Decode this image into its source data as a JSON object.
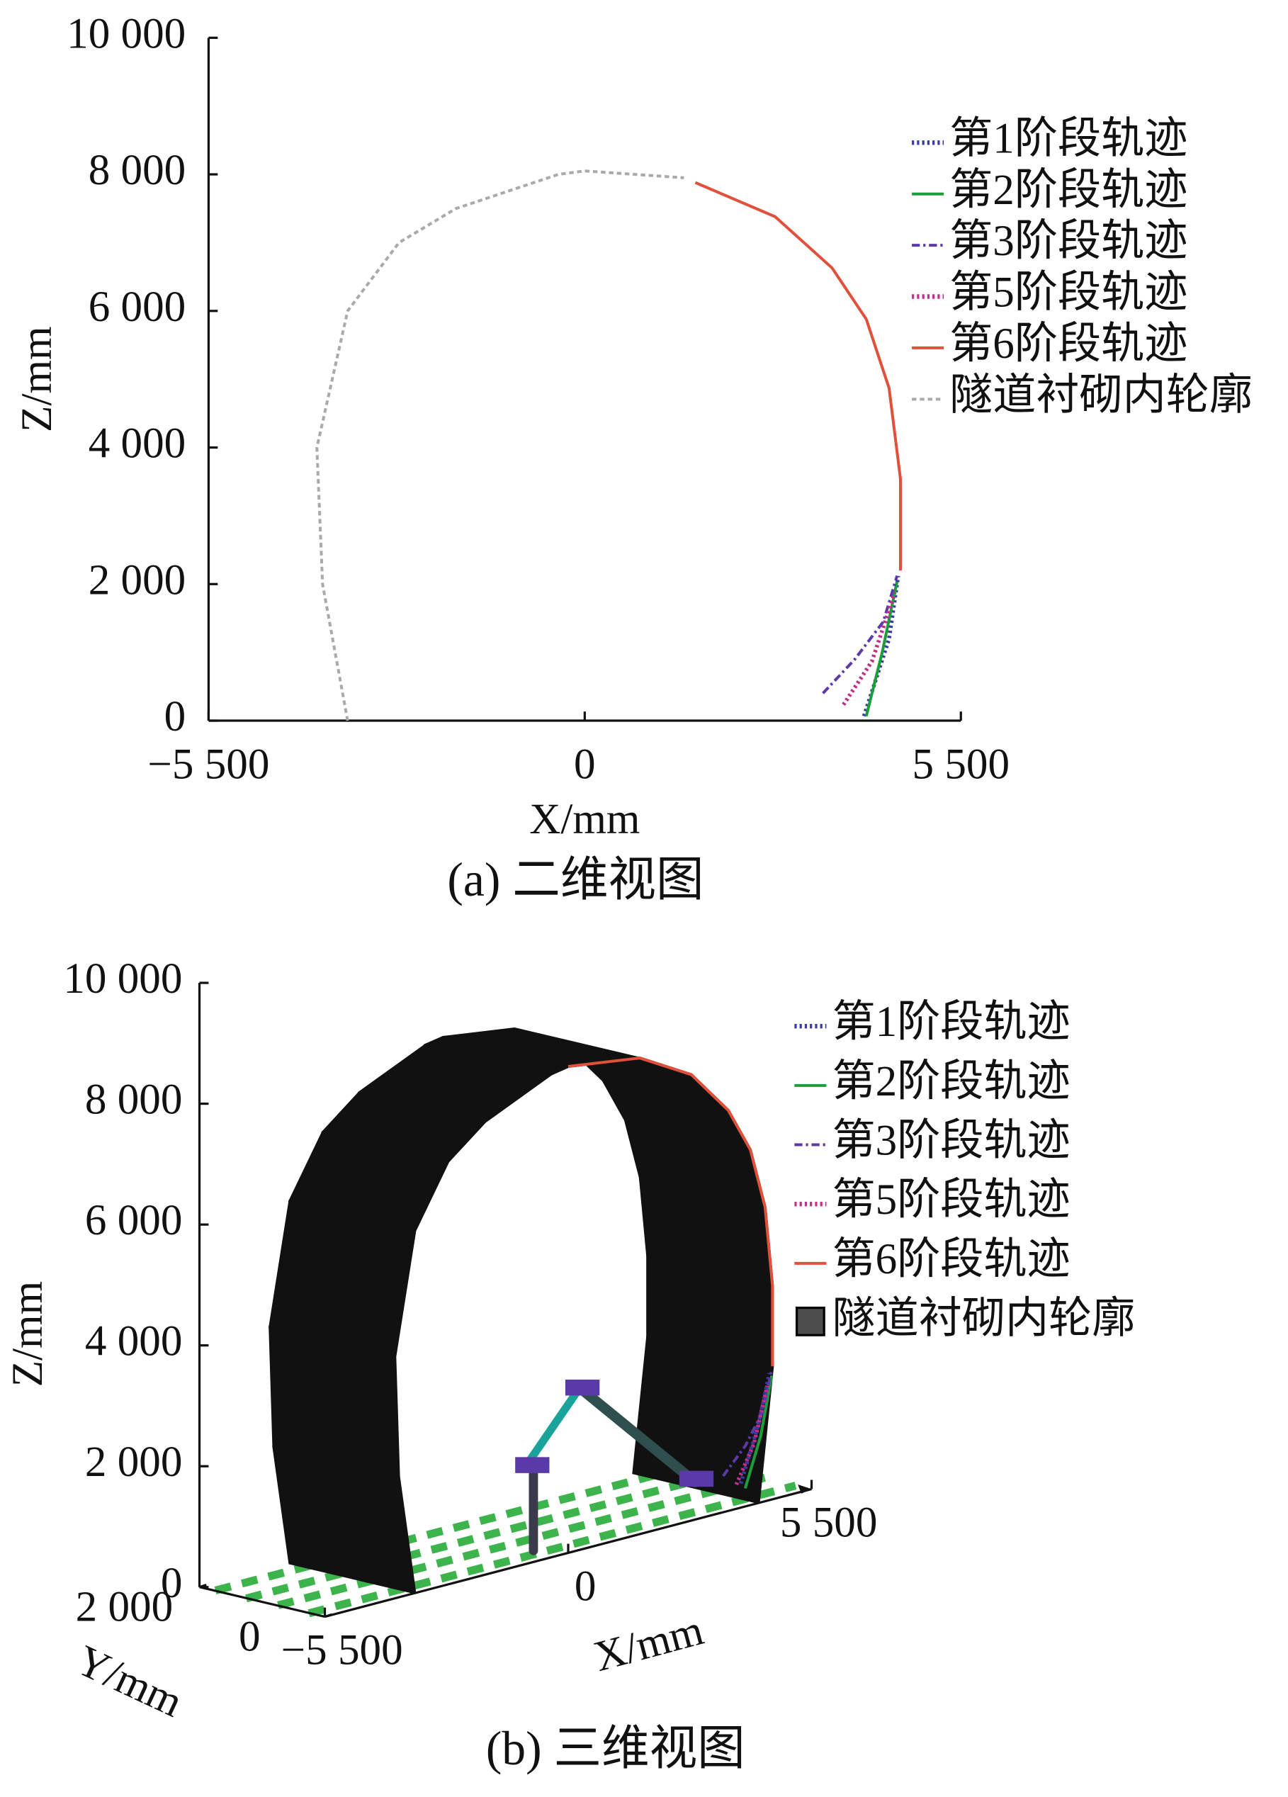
{
  "chart_data": [
    {
      "type": "line",
      "caption": "(a)  二维视图",
      "xlabel": "X/mm",
      "ylabel": "Z/mm",
      "xlim": [
        -5500,
        5500
      ],
      "xticks": [
        {
          "value": -5500,
          "label": "−5 500"
        },
        0,
        {
          "value": 5500,
          "label": "5 500"
        }
      ],
      "ylim": [
        0,
        10000
      ],
      "yticks": [
        0,
        {
          "value": 2000,
          "label": "2 000"
        },
        {
          "value": 4000,
          "label": "4 000"
        },
        {
          "value": 6000,
          "label": "6 000"
        },
        {
          "value": 8000,
          "label": "8 000"
        },
        {
          "value": 10000,
          "label": "10 000"
        }
      ],
      "series": [
        {
          "name": "第1阶段轨迹",
          "color": "#3a3aa0",
          "style": "dotted",
          "x": [
            4083,
            4450,
            4583
          ],
          "values": [
            67,
            1200,
            2120
          ]
        },
        {
          "name": "第2阶段轨迹",
          "color": "#1a9e3a",
          "style": "solid",
          "x": [
            4117,
            4350,
            4567
          ],
          "values": [
            67,
            1000,
            2037
          ]
        },
        {
          "name": "第3阶段轨迹",
          "color": "#5a3aa8",
          "style": "dashdot",
          "x": [
            3483,
            3950,
            4367,
            4567
          ],
          "values": [
            400,
            900,
            1450,
            2120
          ]
        },
        {
          "name": "第5阶段轨迹",
          "color": "#c0308a",
          "style": "dotted",
          "x": [
            3783,
            4200,
            4533
          ],
          "values": [
            233,
            870,
            1870
          ]
        },
        {
          "name": "第6阶段轨迹",
          "color": "#e0503a",
          "style": "solid",
          "x": [
            1617,
            2783,
            3617,
            4117,
            4450,
            4617,
            4617
          ],
          "values": [
            7880,
            7380,
            6630,
            5880,
            4870,
            3540,
            2200
          ]
        },
        {
          "name": "隧道衬砌内轮廓",
          "color": "#aaaaaa",
          "style": "dashed",
          "x": [
            -3467,
            -3833,
            -3917,
            -3467,
            -2717,
            -1883,
            -383,
            0,
            1450
          ],
          "values": [
            0,
            2000,
            4000,
            6000,
            7000,
            7500,
            8000,
            8050,
            7950
          ]
        }
      ]
    },
    {
      "type": "line3d",
      "caption": "(b)  三维视图",
      "xlabel": "X/mm",
      "ylabel": "Y/mm",
      "zlabel": "Z/mm",
      "xlim": [
        -5500,
        5500
      ],
      "xticks": [
        {
          "value": -5500,
          "label": "−5 500"
        },
        0,
        {
          "value": 5500,
          "label": "5 500"
        }
      ],
      "ylim": [
        0,
        2000
      ],
      "yticks": [
        0,
        {
          "value": 2000,
          "label": "2 000"
        }
      ],
      "zlim": [
        0,
        10000
      ],
      "zticks": [
        0,
        {
          "value": 2000,
          "label": "2 000"
        },
        {
          "value": 4000,
          "label": "4 000"
        },
        {
          "value": 6000,
          "label": "6 000"
        },
        {
          "value": 8000,
          "label": "8 000"
        },
        {
          "value": 10000,
          "label": "10 000"
        }
      ],
      "series": [
        {
          "name": "第1阶段轨迹",
          "color": "#3a3aa0",
          "style": "dotted",
          "x": [
            3900,
            4300,
            4550
          ],
          "values": [
            400,
            1300,
            2100
          ]
        },
        {
          "name": "第2阶段轨迹",
          "color": "#1a9e3a",
          "style": "solid",
          "x": [
            4000,
            4350,
            4600
          ],
          "values": [
            300,
            1100,
            2050
          ]
        },
        {
          "name": "第3阶段轨迹",
          "color": "#5a3aa8",
          "style": "dashdot",
          "x": [
            3500,
            4000,
            4400,
            4600
          ],
          "values": [
            600,
            1000,
            1500,
            2150
          ]
        },
        {
          "name": "第5阶段轨迹",
          "color": "#c0308a",
          "style": "dotted",
          "x": [
            3800,
            4200,
            4500
          ],
          "values": [
            400,
            1000,
            1900
          ]
        },
        {
          "name": "第6阶段轨迹",
          "color": "#e0503a",
          "style": "solid",
          "x": [
            0,
            1617,
            2783,
            3617,
            4117,
            4450,
            4617,
            4617
          ],
          "values": [
            8050,
            7880,
            7380,
            6630,
            5880,
            4870,
            3540,
            2200
          ]
        },
        {
          "name": "隧道衬砌内轮廓",
          "color": "#111111",
          "style": "solid",
          "surface": true,
          "x": [
            -3467,
            -3833,
            -3917,
            -3467,
            -2717,
            -1883,
            -383,
            0,
            1617,
            2783,
            3617,
            4117,
            4450,
            4617,
            4617,
            4300
          ],
          "values": [
            0,
            2000,
            4000,
            6000,
            7000,
            7500,
            8000,
            8050,
            7880,
            7380,
            6630,
            5880,
            4870,
            3540,
            2200,
            0
          ]
        }
      ]
    }
  ]
}
